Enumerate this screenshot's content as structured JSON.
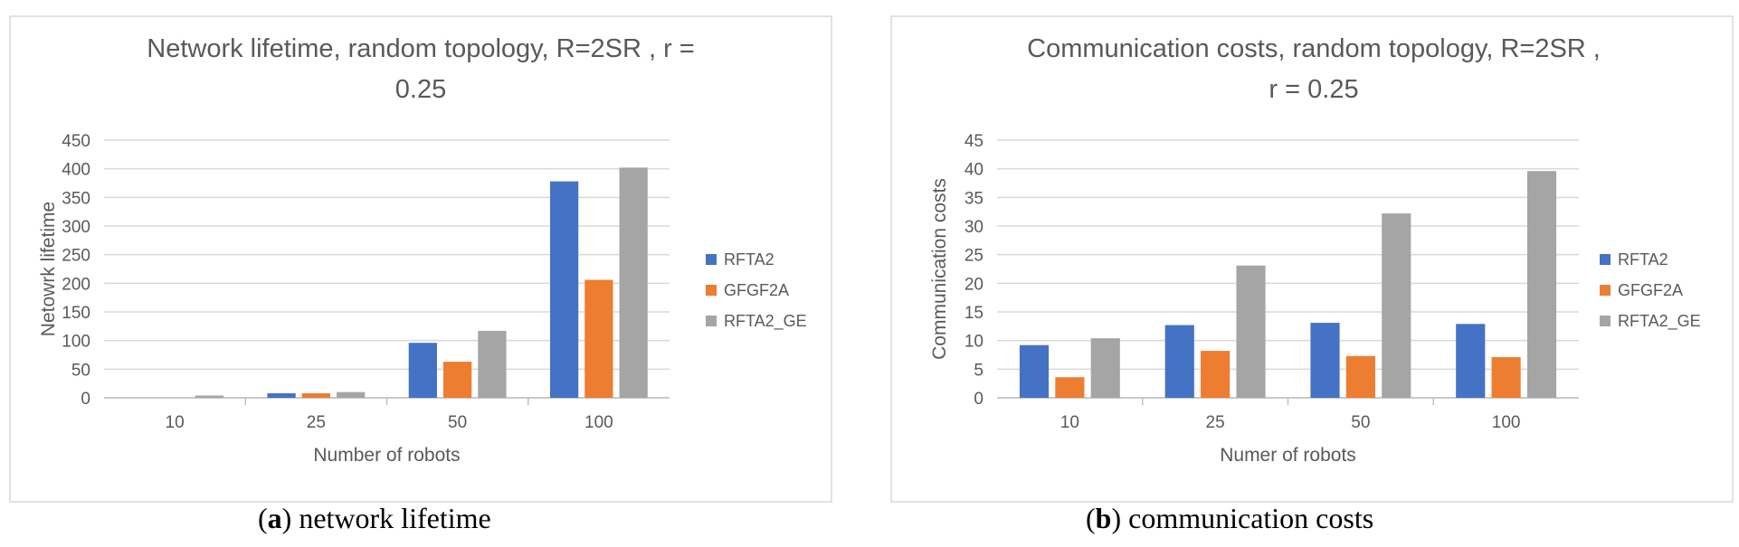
{
  "chart_data": [
    {
      "id": "a",
      "type": "bar",
      "title_lines": [
        "Network lifetime, random topology, R=2SR , r =",
        "0.25"
      ],
      "xlabel": "Number of robots",
      "ylabel": "Netowrk lifetime",
      "categories": [
        "10",
        "25",
        "50",
        "100"
      ],
      "ylim": [
        0,
        450
      ],
      "ystep": 50,
      "grid": true,
      "legend_position": "right",
      "series": [
        {
          "name": "RFTA2",
          "color": "#4472C4",
          "values": [
            0,
            8,
            96,
            378
          ]
        },
        {
          "name": "GFGF2A",
          "color": "#ED7D31",
          "values": [
            0,
            8,
            63,
            206
          ]
        },
        {
          "name": "RFTA2_GE",
          "color": "#A5A5A5",
          "values": [
            4,
            10,
            117,
            402
          ]
        }
      ],
      "caption": {
        "letter": "a",
        "text": "network lifetime"
      }
    },
    {
      "id": "b",
      "type": "bar",
      "title_lines": [
        "Communication costs, random topology, R=2SR ,",
        "r = 0.25"
      ],
      "xlabel": "Numer of robots",
      "ylabel": "Communication costs",
      "categories": [
        "10",
        "25",
        "50",
        "100"
      ],
      "ylim": [
        0,
        45
      ],
      "ystep": 5,
      "grid": true,
      "legend_position": "right",
      "series": [
        {
          "name": "RFTA2",
          "color": "#4472C4",
          "values": [
            9.2,
            12.7,
            13.1,
            12.9
          ]
        },
        {
          "name": "GFGF2A",
          "color": "#ED7D31",
          "values": [
            3.6,
            8.2,
            7.3,
            7.1
          ]
        },
        {
          "name": "RFTA2_GE",
          "color": "#A5A5A5",
          "values": [
            10.4,
            23.1,
            32.2,
            39.6
          ]
        }
      ],
      "caption": {
        "letter": "b",
        "text": "communication costs"
      }
    }
  ]
}
